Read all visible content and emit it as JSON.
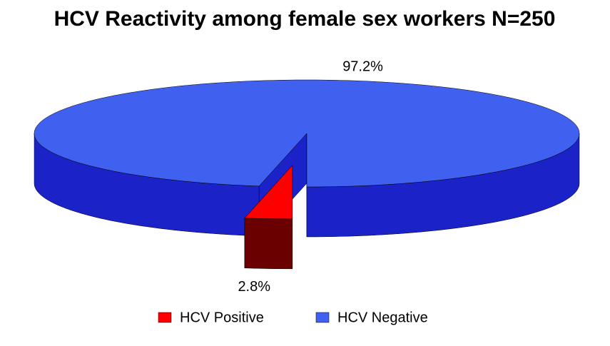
{
  "chart_data": {
    "type": "pie3d",
    "title": "HCV Reactivity among female sex workers N=250",
    "categories": [
      "HCV Positive",
      "HCV Negative"
    ],
    "values": [
      2.8,
      97.2
    ],
    "value_labels": [
      "2.8%",
      "97.2%"
    ],
    "colors": [
      "#ff0000",
      "#4060f0"
    ],
    "side_colors": [
      "#6b0000",
      "#1a22c8"
    ],
    "legend": "bottom"
  }
}
